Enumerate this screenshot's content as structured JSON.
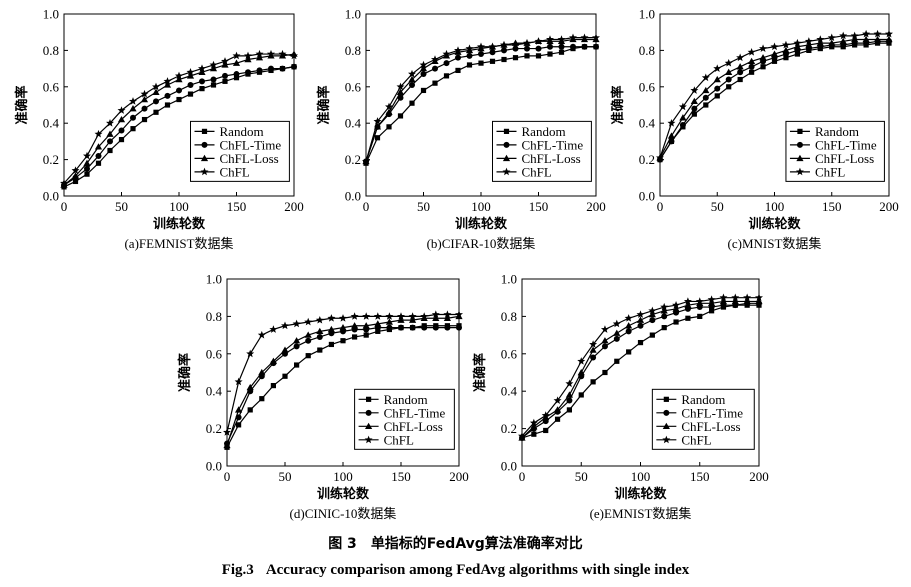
{
  "figure": {
    "caption_cn_number": "图 3",
    "caption_cn_text": "单指标的FedAvg算法准确率对比",
    "caption_en_number": "Fig.3",
    "caption_en_text": "Accuracy comparison among FedAvg algorithms with single index"
  },
  "chart_data": [
    {
      "type": "line",
      "subtitle": "(a)FEMNIST数据集",
      "xlabel": "训练轮数",
      "ylabel": "准确率",
      "xlim": [
        0,
        200
      ],
      "ylim": [
        0,
        1.0
      ],
      "xticks": [
        0,
        50,
        100,
        150,
        200
      ],
      "yticks": [
        0.0,
        0.2,
        0.4,
        0.6,
        0.8,
        1.0
      ],
      "legend_position": "lower-right",
      "series": [
        {
          "name": "Random",
          "marker": "square",
          "x": [
            0,
            10,
            20,
            30,
            40,
            50,
            60,
            70,
            80,
            90,
            100,
            110,
            120,
            130,
            140,
            150,
            160,
            170,
            180,
            190,
            200
          ],
          "y": [
            0.05,
            0.08,
            0.12,
            0.18,
            0.25,
            0.31,
            0.37,
            0.42,
            0.46,
            0.5,
            0.53,
            0.56,
            0.59,
            0.61,
            0.63,
            0.65,
            0.67,
            0.68,
            0.69,
            0.7,
            0.71
          ]
        },
        {
          "name": "ChFL-Time",
          "marker": "circle",
          "x": [
            0,
            10,
            20,
            30,
            40,
            50,
            60,
            70,
            80,
            90,
            100,
            110,
            120,
            130,
            140,
            150,
            160,
            170,
            180,
            190,
            200
          ],
          "y": [
            0.06,
            0.1,
            0.15,
            0.22,
            0.3,
            0.36,
            0.43,
            0.48,
            0.52,
            0.55,
            0.58,
            0.61,
            0.63,
            0.64,
            0.66,
            0.67,
            0.68,
            0.69,
            0.7,
            0.7,
            0.71
          ]
        },
        {
          "name": "ChFL-Loss",
          "marker": "triangle",
          "x": [
            0,
            10,
            20,
            30,
            40,
            50,
            60,
            70,
            80,
            90,
            100,
            110,
            120,
            130,
            140,
            150,
            160,
            170,
            180,
            190,
            200
          ],
          "y": [
            0.06,
            0.11,
            0.18,
            0.27,
            0.34,
            0.42,
            0.48,
            0.53,
            0.57,
            0.61,
            0.64,
            0.66,
            0.68,
            0.7,
            0.72,
            0.73,
            0.75,
            0.76,
            0.77,
            0.77,
            0.78
          ]
        },
        {
          "name": "ChFL",
          "marker": "star",
          "x": [
            0,
            10,
            20,
            30,
            40,
            50,
            60,
            70,
            80,
            90,
            100,
            110,
            120,
            130,
            140,
            150,
            160,
            170,
            180,
            190,
            200
          ],
          "y": [
            0.07,
            0.14,
            0.22,
            0.34,
            0.4,
            0.47,
            0.52,
            0.56,
            0.6,
            0.63,
            0.66,
            0.68,
            0.7,
            0.72,
            0.74,
            0.77,
            0.77,
            0.78,
            0.78,
            0.78,
            0.77
          ]
        }
      ]
    },
    {
      "type": "line",
      "subtitle": "(b)CIFAR-10数据集",
      "xlabel": "训练轮数",
      "ylabel": "准确率",
      "xlim": [
        0,
        200
      ],
      "ylim": [
        0,
        1.0
      ],
      "xticks": [
        0,
        50,
        100,
        150,
        200
      ],
      "yticks": [
        0.0,
        0.2,
        0.4,
        0.6,
        0.8,
        1.0
      ],
      "legend_position": "lower-right",
      "series": [
        {
          "name": "Random",
          "marker": "square",
          "x": [
            0,
            10,
            20,
            30,
            40,
            50,
            60,
            70,
            80,
            90,
            100,
            110,
            120,
            130,
            140,
            150,
            160,
            170,
            180,
            190,
            200
          ],
          "y": [
            0.18,
            0.32,
            0.38,
            0.44,
            0.51,
            0.58,
            0.62,
            0.66,
            0.69,
            0.72,
            0.73,
            0.74,
            0.75,
            0.76,
            0.77,
            0.77,
            0.78,
            0.79,
            0.81,
            0.82,
            0.82
          ]
        },
        {
          "name": "ChFL-Time",
          "marker": "circle",
          "x": [
            0,
            10,
            20,
            30,
            40,
            50,
            60,
            70,
            80,
            90,
            100,
            110,
            120,
            130,
            140,
            150,
            160,
            170,
            180,
            190,
            200
          ],
          "y": [
            0.19,
            0.38,
            0.45,
            0.54,
            0.61,
            0.67,
            0.7,
            0.73,
            0.76,
            0.77,
            0.78,
            0.79,
            0.8,
            0.81,
            0.81,
            0.81,
            0.82,
            0.82,
            0.82,
            0.82,
            0.82
          ]
        },
        {
          "name": "ChFL-Loss",
          "marker": "triangle",
          "x": [
            0,
            10,
            20,
            30,
            40,
            50,
            60,
            70,
            80,
            90,
            100,
            110,
            120,
            130,
            140,
            150,
            160,
            170,
            180,
            190,
            200
          ],
          "y": [
            0.19,
            0.38,
            0.46,
            0.57,
            0.64,
            0.7,
            0.74,
            0.77,
            0.79,
            0.8,
            0.81,
            0.82,
            0.83,
            0.84,
            0.84,
            0.85,
            0.85,
            0.85,
            0.86,
            0.86,
            0.86
          ]
        },
        {
          "name": "ChFL",
          "marker": "star",
          "x": [
            0,
            10,
            20,
            30,
            40,
            50,
            60,
            70,
            80,
            90,
            100,
            110,
            120,
            130,
            140,
            150,
            160,
            170,
            180,
            190,
            200
          ],
          "y": [
            0.19,
            0.41,
            0.49,
            0.6,
            0.67,
            0.72,
            0.75,
            0.78,
            0.8,
            0.81,
            0.82,
            0.82,
            0.83,
            0.83,
            0.84,
            0.85,
            0.86,
            0.86,
            0.87,
            0.87,
            0.87
          ]
        }
      ]
    },
    {
      "type": "line",
      "subtitle": "(c)MNIST数据集",
      "xlabel": "训练轮数",
      "ylabel": "准确率",
      "xlim": [
        0,
        200
      ],
      "ylim": [
        0,
        1.0
      ],
      "xticks": [
        0,
        50,
        100,
        150,
        200
      ],
      "yticks": [
        0.0,
        0.2,
        0.4,
        0.6,
        0.8,
        1.0
      ],
      "legend_position": "lower-right",
      "series": [
        {
          "name": "Random",
          "marker": "square",
          "x": [
            0,
            10,
            20,
            30,
            40,
            50,
            60,
            70,
            80,
            90,
            100,
            110,
            120,
            130,
            140,
            150,
            160,
            170,
            180,
            190,
            200
          ],
          "y": [
            0.2,
            0.3,
            0.38,
            0.45,
            0.5,
            0.55,
            0.6,
            0.64,
            0.68,
            0.71,
            0.74,
            0.76,
            0.78,
            0.8,
            0.81,
            0.82,
            0.82,
            0.83,
            0.83,
            0.84,
            0.84
          ]
        },
        {
          "name": "ChFL-Time",
          "marker": "circle",
          "x": [
            0,
            10,
            20,
            30,
            40,
            50,
            60,
            70,
            80,
            90,
            100,
            110,
            120,
            130,
            140,
            150,
            160,
            170,
            180,
            190,
            200
          ],
          "y": [
            0.2,
            0.3,
            0.39,
            0.48,
            0.54,
            0.59,
            0.64,
            0.68,
            0.71,
            0.74,
            0.76,
            0.78,
            0.8,
            0.81,
            0.82,
            0.83,
            0.83,
            0.84,
            0.84,
            0.85,
            0.85
          ]
        },
        {
          "name": "ChFL-Loss",
          "marker": "triangle",
          "x": [
            0,
            10,
            20,
            30,
            40,
            50,
            60,
            70,
            80,
            90,
            100,
            110,
            120,
            130,
            140,
            150,
            160,
            170,
            180,
            190,
            200
          ],
          "y": [
            0.21,
            0.33,
            0.43,
            0.52,
            0.58,
            0.64,
            0.68,
            0.71,
            0.74,
            0.76,
            0.78,
            0.8,
            0.82,
            0.83,
            0.84,
            0.84,
            0.85,
            0.86,
            0.86,
            0.86,
            0.86
          ]
        },
        {
          "name": "ChFL",
          "marker": "star",
          "x": [
            0,
            10,
            20,
            30,
            40,
            50,
            60,
            70,
            80,
            90,
            100,
            110,
            120,
            130,
            140,
            150,
            160,
            170,
            180,
            190,
            200
          ],
          "y": [
            0.21,
            0.4,
            0.49,
            0.58,
            0.65,
            0.7,
            0.73,
            0.76,
            0.79,
            0.81,
            0.82,
            0.83,
            0.84,
            0.85,
            0.86,
            0.87,
            0.88,
            0.88,
            0.89,
            0.89,
            0.89
          ]
        }
      ]
    },
    {
      "type": "line",
      "subtitle": "(d)CINIC-10数据集",
      "xlabel": "训练轮数",
      "ylabel": "准确率",
      "xlim": [
        0,
        200
      ],
      "ylim": [
        0,
        1.0
      ],
      "xticks": [
        0,
        50,
        100,
        150,
        200
      ],
      "yticks": [
        0.0,
        0.2,
        0.4,
        0.6,
        0.8,
        1.0
      ],
      "legend_position": "lower-right",
      "series": [
        {
          "name": "Random",
          "marker": "square",
          "x": [
            0,
            10,
            20,
            30,
            40,
            50,
            60,
            70,
            80,
            90,
            100,
            110,
            120,
            130,
            140,
            150,
            160,
            170,
            180,
            190,
            200
          ],
          "y": [
            0.1,
            0.22,
            0.3,
            0.36,
            0.43,
            0.48,
            0.54,
            0.59,
            0.62,
            0.65,
            0.67,
            0.69,
            0.7,
            0.72,
            0.73,
            0.74,
            0.74,
            0.75,
            0.75,
            0.75,
            0.75
          ]
        },
        {
          "name": "ChFL-Time",
          "marker": "circle",
          "x": [
            0,
            10,
            20,
            30,
            40,
            50,
            60,
            70,
            80,
            90,
            100,
            110,
            120,
            130,
            140,
            150,
            160,
            170,
            180,
            190,
            200
          ],
          "y": [
            0.12,
            0.26,
            0.4,
            0.48,
            0.55,
            0.6,
            0.64,
            0.67,
            0.69,
            0.71,
            0.72,
            0.73,
            0.73,
            0.74,
            0.74,
            0.74,
            0.74,
            0.74,
            0.74,
            0.74,
            0.74
          ]
        },
        {
          "name": "ChFL-Loss",
          "marker": "triangle",
          "x": [
            0,
            10,
            20,
            30,
            40,
            50,
            60,
            70,
            80,
            90,
            100,
            110,
            120,
            130,
            140,
            150,
            160,
            170,
            180,
            190,
            200
          ],
          "y": [
            0.11,
            0.3,
            0.42,
            0.5,
            0.56,
            0.62,
            0.67,
            0.7,
            0.72,
            0.73,
            0.74,
            0.75,
            0.75,
            0.76,
            0.77,
            0.78,
            0.78,
            0.79,
            0.79,
            0.79,
            0.8
          ]
        },
        {
          "name": "ChFL",
          "marker": "star",
          "x": [
            0,
            10,
            20,
            30,
            40,
            50,
            60,
            70,
            80,
            90,
            100,
            110,
            120,
            130,
            140,
            150,
            160,
            170,
            180,
            190,
            200
          ],
          "y": [
            0.18,
            0.45,
            0.6,
            0.7,
            0.73,
            0.75,
            0.76,
            0.77,
            0.78,
            0.79,
            0.79,
            0.8,
            0.8,
            0.8,
            0.8,
            0.8,
            0.8,
            0.8,
            0.81,
            0.81,
            0.81
          ]
        }
      ]
    },
    {
      "type": "line",
      "subtitle": "(e)EMNIST数据集",
      "xlabel": "训练轮数",
      "ylabel": "准确率",
      "xlim": [
        0,
        200
      ],
      "ylim": [
        0,
        1.0
      ],
      "xticks": [
        0,
        50,
        100,
        150,
        200
      ],
      "yticks": [
        0.0,
        0.2,
        0.4,
        0.6,
        0.8,
        1.0
      ],
      "legend_position": "lower-right",
      "series": [
        {
          "name": "Random",
          "marker": "square",
          "x": [
            0,
            10,
            20,
            30,
            40,
            50,
            60,
            70,
            80,
            90,
            100,
            110,
            120,
            130,
            140,
            150,
            160,
            170,
            180,
            190,
            200
          ],
          "y": [
            0.15,
            0.17,
            0.19,
            0.25,
            0.3,
            0.38,
            0.45,
            0.5,
            0.56,
            0.61,
            0.66,
            0.7,
            0.74,
            0.77,
            0.79,
            0.8,
            0.83,
            0.85,
            0.86,
            0.86,
            0.86
          ]
        },
        {
          "name": "ChFL-Time",
          "marker": "circle",
          "x": [
            0,
            10,
            20,
            30,
            40,
            50,
            60,
            70,
            80,
            90,
            100,
            110,
            120,
            130,
            140,
            150,
            160,
            170,
            180,
            190,
            200
          ],
          "y": [
            0.15,
            0.2,
            0.24,
            0.29,
            0.35,
            0.48,
            0.58,
            0.64,
            0.68,
            0.72,
            0.75,
            0.78,
            0.8,
            0.82,
            0.84,
            0.85,
            0.85,
            0.86,
            0.86,
            0.87,
            0.87
          ]
        },
        {
          "name": "ChFL-Loss",
          "marker": "triangle",
          "x": [
            0,
            10,
            20,
            30,
            40,
            50,
            60,
            70,
            80,
            90,
            100,
            110,
            120,
            130,
            140,
            150,
            160,
            170,
            180,
            190,
            200
          ],
          "y": [
            0.15,
            0.21,
            0.26,
            0.3,
            0.38,
            0.5,
            0.62,
            0.67,
            0.71,
            0.75,
            0.78,
            0.81,
            0.83,
            0.84,
            0.86,
            0.87,
            0.87,
            0.88,
            0.88,
            0.88,
            0.88
          ]
        },
        {
          "name": "ChFL",
          "marker": "star",
          "x": [
            0,
            10,
            20,
            30,
            40,
            50,
            60,
            70,
            80,
            90,
            100,
            110,
            120,
            130,
            140,
            150,
            160,
            170,
            180,
            190,
            200
          ],
          "y": [
            0.16,
            0.23,
            0.27,
            0.35,
            0.44,
            0.56,
            0.65,
            0.73,
            0.76,
            0.79,
            0.81,
            0.83,
            0.85,
            0.86,
            0.88,
            0.88,
            0.89,
            0.9,
            0.9,
            0.9,
            0.9
          ]
        }
      ]
    }
  ]
}
